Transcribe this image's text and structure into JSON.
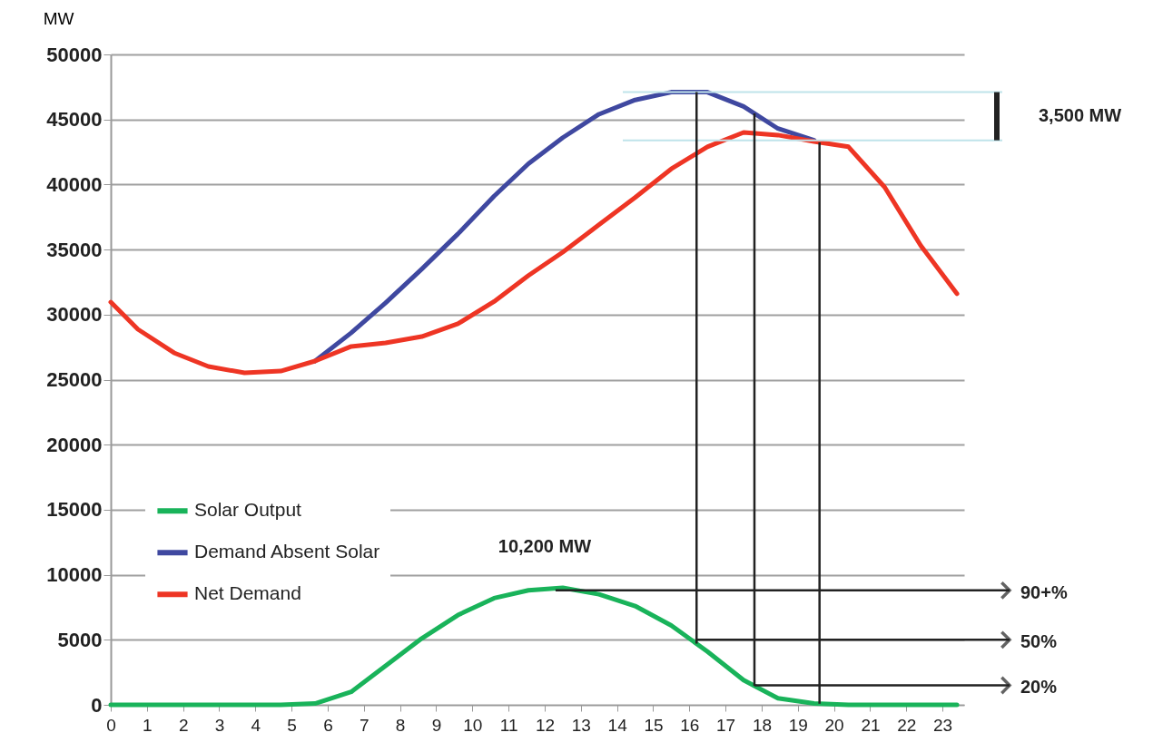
{
  "chart_data": {
    "type": "line",
    "ylabel": "MW",
    "x": [
      0,
      0.75,
      1.75,
      2.7,
      3.7,
      4.7,
      5.65,
      6.65,
      7.6,
      8.6,
      9.6,
      10.6,
      11.55,
      12.5,
      13.5,
      14.5,
      15.5,
      16.5,
      17.5,
      18.45,
      19.45,
      20.4,
      21.4,
      22.4,
      23.4
    ],
    "series": [
      {
        "name": "Solar Output",
        "color": "#19b35a",
        "values": [
          0,
          0,
          0,
          0,
          0,
          0,
          100,
          1000,
          3000,
          5100,
          6900,
          8200,
          8800,
          9000,
          8500,
          7600,
          6100,
          4100,
          1900,
          500,
          100,
          0,
          0,
          0,
          0
        ]
      },
      {
        "name": "Demand Absent Solar",
        "color": "#3f48a0",
        "values": [
          null,
          null,
          null,
          null,
          null,
          null,
          26430,
          28600,
          30900,
          33500,
          36200,
          39100,
          41600,
          43600,
          45400,
          46500,
          47100,
          47100,
          46000,
          44300,
          43400,
          null,
          null,
          null,
          null
        ]
      },
      {
        "name": "Net Demand",
        "color": "#ee3524",
        "values": [
          30960,
          28870,
          27060,
          26010,
          25520,
          25660,
          26430,
          27550,
          27820,
          28310,
          29290,
          31000,
          33000,
          34800,
          36900,
          39000,
          41200,
          42900,
          44000,
          43800,
          43300,
          42900,
          39800,
          35300,
          31600
        ]
      }
    ],
    "xlim": [
      0,
      23.6
    ],
    "xticks": [
      0,
      1,
      2,
      3,
      4,
      5,
      6,
      7,
      8,
      9,
      10,
      11,
      12,
      13,
      14,
      15,
      16,
      17,
      18,
      19,
      20,
      21,
      22,
      23
    ],
    "ylim": [
      0,
      50000
    ],
    "yticks": [
      0,
      5000,
      10000,
      15000,
      20000,
      25000,
      30000,
      35000,
      40000,
      45000,
      50000
    ],
    "grid": "y",
    "legend": "left",
    "ref_lines": [
      {
        "axis": "y",
        "value": 47100,
        "color": "#bfe3ea"
      },
      {
        "axis": "y",
        "value": 43400,
        "label": "3,500 MW",
        "color": "#bfe3ea"
      },
      {
        "axis": "x",
        "value": 16.2,
        "color": "#222222"
      },
      {
        "axis": "x",
        "value": 17.8,
        "color": "#222222"
      },
      {
        "axis": "x",
        "value": 19.6,
        "color": "#222222"
      }
    ],
    "annotations": [
      "10,200 MW",
      {
        "text": "90+%",
        "x": 12.3,
        "y": 8800
      },
      {
        "text": "50%",
        "x": 16.2,
        "y": 5000
      },
      {
        "text": "20%",
        "x": 17.8,
        "y": 1500
      }
    ]
  }
}
